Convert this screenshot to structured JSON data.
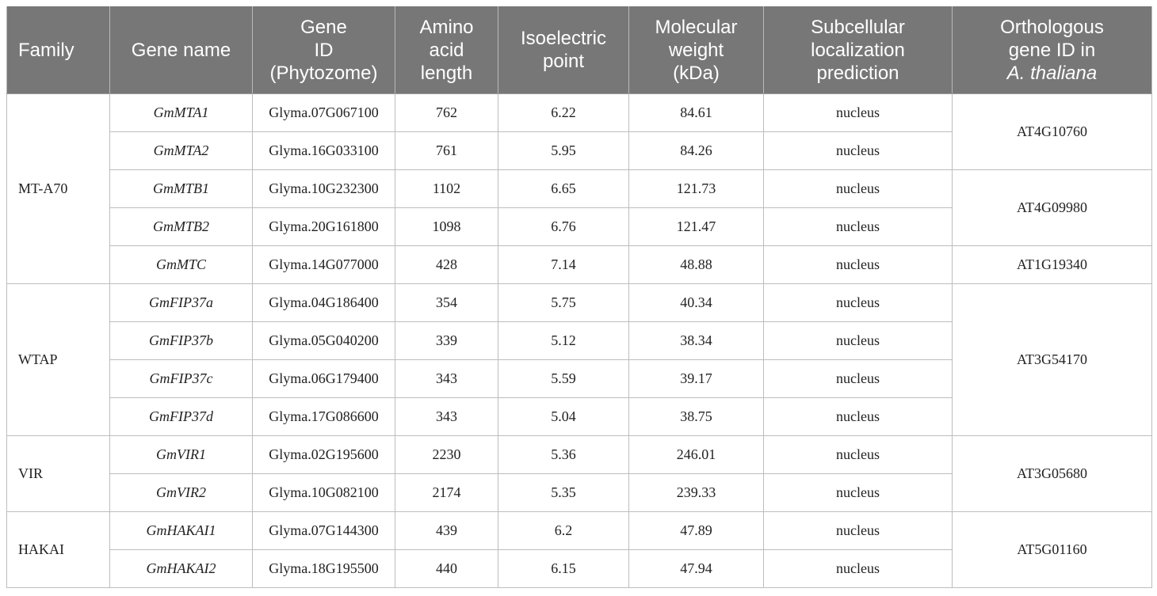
{
  "table": {
    "headers": {
      "family": [
        "Family"
      ],
      "gene_name": [
        "Gene name"
      ],
      "gene_id": [
        "Gene",
        "ID",
        "(Phytozome)"
      ],
      "aa_length": [
        "Amino",
        "acid",
        "length"
      ],
      "pi": [
        "Isoelectric",
        "point"
      ],
      "mw": [
        "Molecular",
        "weight",
        "(kDa)"
      ],
      "localization": [
        "Subcellular",
        "localization",
        "prediction"
      ],
      "ortholog": [
        "Orthologous",
        "gene ID in",
        "A. thaliana"
      ]
    },
    "families": [
      "MT-A70",
      "WTAP",
      "VIR",
      "HAKAI"
    ],
    "orthologs": [
      "AT4G10760",
      "AT4G09980",
      "AT1G19340",
      "AT3G54170",
      "AT3G05680",
      "AT5G01160"
    ],
    "rows": [
      {
        "gene_name": "GmMTA1",
        "gene_id": "Glyma.07G067100",
        "aa_length": "762",
        "pi": "6.22",
        "mw": "84.61",
        "localization": "nucleus"
      },
      {
        "gene_name": "GmMTA2",
        "gene_id": "Glyma.16G033100",
        "aa_length": "761",
        "pi": "5.95",
        "mw": "84.26",
        "localization": "nucleus"
      },
      {
        "gene_name": "GmMTB1",
        "gene_id": "Glyma.10G232300",
        "aa_length": "1102",
        "pi": "6.65",
        "mw": "121.73",
        "localization": "nucleus"
      },
      {
        "gene_name": "GmMTB2",
        "gene_id": "Glyma.20G161800",
        "aa_length": "1098",
        "pi": "6.76",
        "mw": "121.47",
        "localization": "nucleus"
      },
      {
        "gene_name": "GmMTC",
        "gene_id": "Glyma.14G077000",
        "aa_length": "428",
        "pi": "7.14",
        "mw": "48.88",
        "localization": "nucleus"
      },
      {
        "gene_name": "GmFIP37a",
        "gene_id": "Glyma.04G186400",
        "aa_length": "354",
        "pi": "5.75",
        "mw": "40.34",
        "localization": "nucleus"
      },
      {
        "gene_name": "GmFIP37b",
        "gene_id": "Glyma.05G040200",
        "aa_length": "339",
        "pi": "5.12",
        "mw": "38.34",
        "localization": "nucleus"
      },
      {
        "gene_name": "GmFIP37c",
        "gene_id": "Glyma.06G179400",
        "aa_length": "343",
        "pi": "5.59",
        "mw": "39.17",
        "localization": "nucleus"
      },
      {
        "gene_name": "GmFIP37d",
        "gene_id": "Glyma.17G086600",
        "aa_length": "343",
        "pi": "5.04",
        "mw": "38.75",
        "localization": "nucleus"
      },
      {
        "gene_name": "GmVIR1",
        "gene_id": "Glyma.02G195600",
        "aa_length": "2230",
        "pi": "5.36",
        "mw": "246.01",
        "localization": "nucleus"
      },
      {
        "gene_name": "GmVIR2",
        "gene_id": "Glyma.10G082100",
        "aa_length": "2174",
        "pi": "5.35",
        "mw": "239.33",
        "localization": "nucleus"
      },
      {
        "gene_name": "GmHAKAI1",
        "gene_id": "Glyma.07G144300",
        "aa_length": "439",
        "pi": "6.2",
        "mw": "47.89",
        "localization": "nucleus"
      },
      {
        "gene_name": "GmHAKAI2",
        "gene_id": "Glyma.18G195500",
        "aa_length": "440",
        "pi": "6.15",
        "mw": "47.94",
        "localization": "nucleus"
      }
    ]
  }
}
